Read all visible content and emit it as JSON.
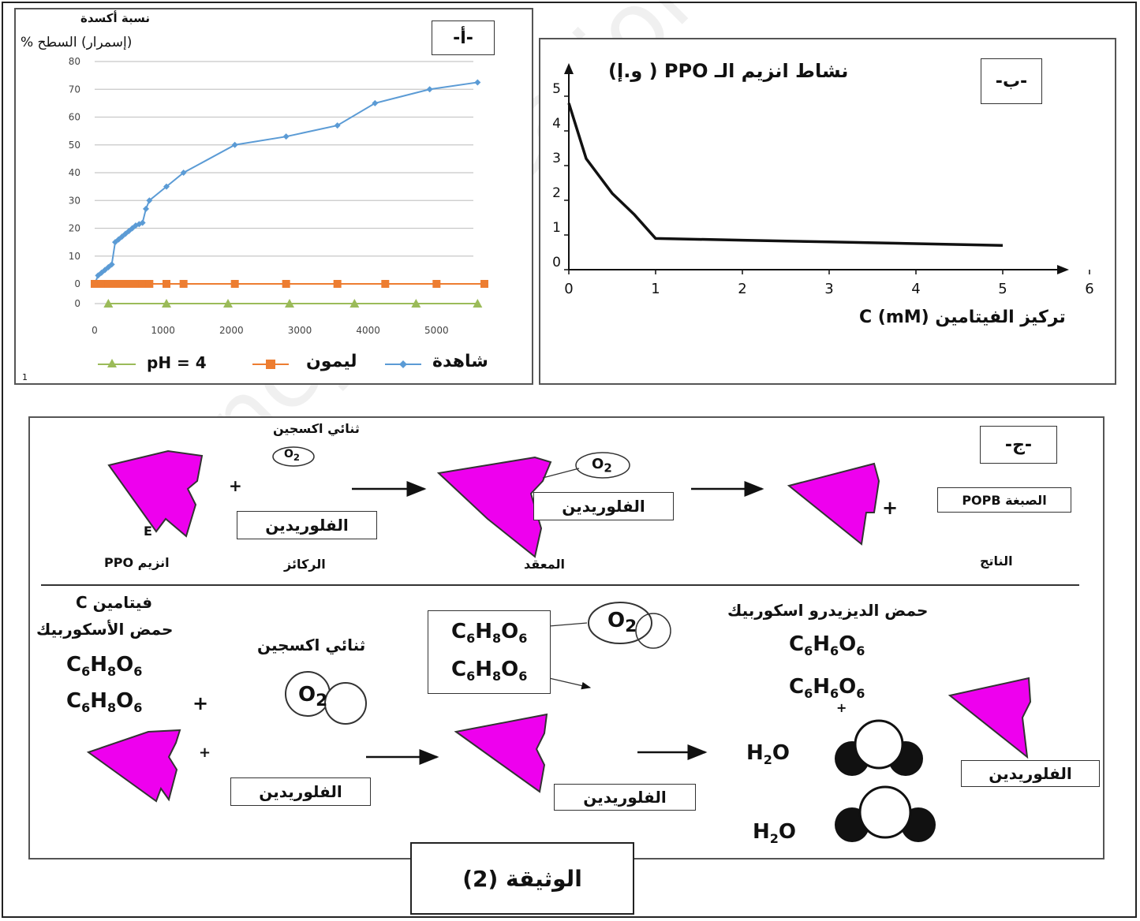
{
  "document_title": "الوثيقة (2)",
  "panel_a": {
    "tag": "-أ-",
    "ylabel_line1": "نسبة أكسدة",
    "ylabel_line2": "(إسمرار) السطح %",
    "corner_mark": "1",
    "legend": {
      "control": "شاهدة",
      "lemon": "ليمون",
      "ph": "4 = pH"
    }
  },
  "panel_b": {
    "tag": "-ب-",
    "title": "نشاط انزيم الـ PPO ( و.إ)",
    "xlabel": "تركيز الفيتامين C (mM)"
  },
  "panel_c": {
    "tag": "-ج-",
    "top": {
      "oxygen_label": "ثنائي اكسجين",
      "o2": "O2",
      "enzyme_e": "E",
      "enzyme_label": "انزيم PPO",
      "substrate_box": "الفلوريدين",
      "substrate_label": "الركائز",
      "complex_box": "الفلوريدين",
      "complex_label": "المعقد",
      "product_box": "الصبغة POPB",
      "product_label": "الناتج",
      "plus": "+"
    },
    "bottom": {
      "vitc_line1": "فيتامين C",
      "vitc_line2": "حمض الأسكوربيك",
      "oxygen_label": "ثنائي اكسجين",
      "dehydro_label": "حمض الديزيدرو اسكوربيك",
      "substrate_box": "الفلوريدين",
      "complex_box": "الفلوريدين",
      "product_box": "الفلوريدين",
      "plus": "+",
      "o2": "O2"
    }
  },
  "colors": {
    "enzyme": "#ee00ee",
    "control": "#5b9bd5",
    "lemon": "#ed7d31",
    "ph": "#9bbb59"
  },
  "chart_data": [
    {
      "type": "line",
      "panel": "أ",
      "ylabel": "نسبة أكسدة (إسمرار) السطح %",
      "xlim": [
        0,
        6000
      ],
      "ylim": [
        0,
        80
      ],
      "x_ticks": [
        0,
        1000,
        2000,
        3000,
        4000,
        5000
      ],
      "y_ticks": [
        0,
        10,
        20,
        30,
        40,
        50,
        60,
        70,
        80
      ],
      "grid": true,
      "legend_position": "bottom",
      "series": [
        {
          "name": "شاهدة",
          "x": [
            0,
            50,
            100,
            150,
            200,
            250,
            300,
            350,
            400,
            450,
            500,
            550,
            600,
            650,
            700,
            750,
            800,
            1050,
            1300,
            2050,
            2800,
            3550,
            4100,
            4900,
            5600
          ],
          "y": [
            0,
            3,
            4,
            5,
            6,
            7,
            15,
            16,
            17,
            18,
            19,
            20,
            21,
            21.5,
            22,
            27,
            30,
            35,
            40,
            50,
            53,
            57,
            65,
            70,
            72.5
          ]
        },
        {
          "name": "ليمون",
          "x": [
            0,
            100,
            200,
            300,
            400,
            500,
            600,
            700,
            800,
            1050,
            1300,
            2050,
            2800,
            3550,
            4250,
            5000,
            5700
          ],
          "y": [
            0,
            0,
            0,
            0,
            0,
            0,
            0,
            0,
            0,
            0,
            0,
            0,
            0,
            0,
            0,
            0,
            0
          ]
        },
        {
          "name": "4 = pH",
          "x": [
            200,
            1050,
            1950,
            2850,
            3800,
            4700,
            5600
          ],
          "y": [
            0,
            0,
            0,
            0,
            0,
            0,
            0
          ]
        }
      ]
    },
    {
      "type": "line",
      "panel": "ب",
      "title": "نشاط انزيم الـ PPO ( و.إ)",
      "xlabel": "تركيز الفيتامين C (mM)",
      "xlim": [
        0,
        6
      ],
      "ylim": [
        0,
        5
      ],
      "x_ticks": [
        0,
        1,
        2,
        3,
        4,
        5,
        6
      ],
      "y_ticks": [
        0,
        1,
        2,
        3,
        4,
        5
      ],
      "grid": false,
      "series": [
        {
          "name": "",
          "x": [
            0,
            0.2,
            0.5,
            0.75,
            1,
            2,
            3,
            4,
            5
          ],
          "y": [
            4.8,
            3.2,
            2.2,
            1.6,
            0.9,
            0.85,
            0.8,
            0.75,
            0.7
          ]
        }
      ]
    }
  ]
}
